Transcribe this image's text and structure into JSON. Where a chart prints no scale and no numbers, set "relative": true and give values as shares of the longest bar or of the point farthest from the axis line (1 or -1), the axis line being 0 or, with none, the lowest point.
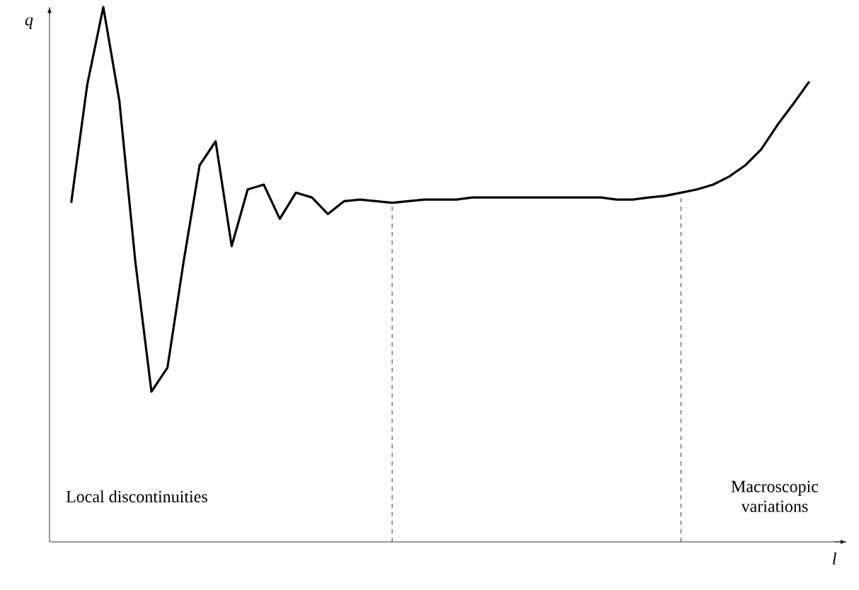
{
  "chart_data": {
    "type": "line",
    "relative": true,
    "xlabel": "l",
    "ylabel": "q",
    "categories": [
      null,
      null,
      null,
      null,
      null,
      null,
      null,
      null,
      null,
      null,
      null,
      null,
      null,
      null,
      null,
      null,
      null,
      null,
      null,
      null,
      null,
      null,
      null,
      null,
      null,
      null,
      null,
      null,
      null,
      null,
      null,
      null,
      null,
      null,
      null,
      null,
      null,
      null,
      null,
      null,
      null,
      null,
      null,
      null,
      null,
      null,
      null
    ],
    "series": [
      {
        "color": "#000000",
        "values": [
          0.634,
          0.855,
          1.0,
          0.825,
          0.523,
          0.281,
          0.326,
          0.523,
          0.704,
          0.749,
          0.553,
          0.659,
          0.668,
          0.604,
          0.653,
          0.644,
          0.613,
          0.637,
          0.64,
          0.637,
          0.634,
          0.637,
          0.64,
          0.64,
          0.64,
          0.644,
          0.644,
          0.644,
          0.644,
          0.644,
          0.644,
          0.644,
          0.644,
          0.644,
          0.64,
          0.64,
          0.644,
          0.647,
          0.653,
          0.659,
          0.668,
          0.683,
          0.704,
          0.734,
          0.779,
          0.819,
          0.861
        ]
      }
    ],
    "annotations": [
      "Local discontinuities",
      "Macroscopic variations"
    ],
    "marker": "none",
    "line_style": "solid"
  }
}
